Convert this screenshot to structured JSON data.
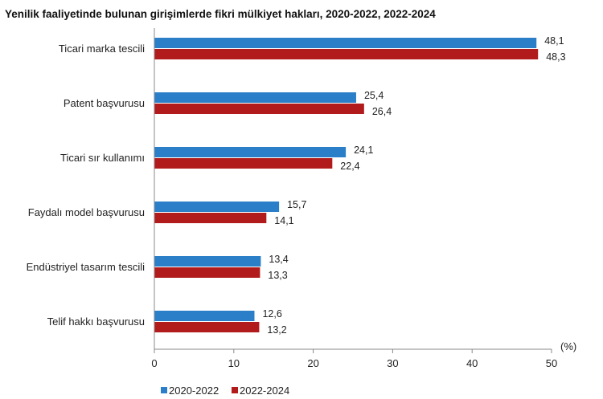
{
  "chart_data": {
    "type": "bar",
    "orientation": "horizontal",
    "title": "Yenilik faaliyetinde bulunan girişimlerde fikri mülkiyet hakları, 2020-2022, 2022-2024",
    "unit_label": "(%)",
    "categories": [
      "Ticari marka tescili",
      "Patent başvurusu",
      "Ticari sır kullanımı",
      "Faydalı model başvurusu",
      "Endüstriyel tasarım tescili",
      "Telif hakkı başvurusu"
    ],
    "series": [
      {
        "name": "2020-2022",
        "color": "#2a7fc8",
        "values": [
          48.1,
          25.4,
          24.1,
          15.7,
          13.4,
          12.6
        ],
        "labels": [
          "48,1",
          "25,4",
          "24,1",
          "15,7",
          "13,4",
          "12,6"
        ]
      },
      {
        "name": "2022-2024",
        "color": "#b11b1b",
        "values": [
          48.3,
          26.4,
          22.4,
          14.1,
          13.3,
          13.2
        ],
        "labels": [
          "48,3",
          "26,4",
          "22,4",
          "14,1",
          "13,3",
          "13,2"
        ]
      }
    ],
    "xlim": [
      0,
      50
    ],
    "xticks": [
      "0",
      "10",
      "20",
      "30",
      "40",
      "50"
    ],
    "grid": false,
    "legend": "bottom-left"
  }
}
